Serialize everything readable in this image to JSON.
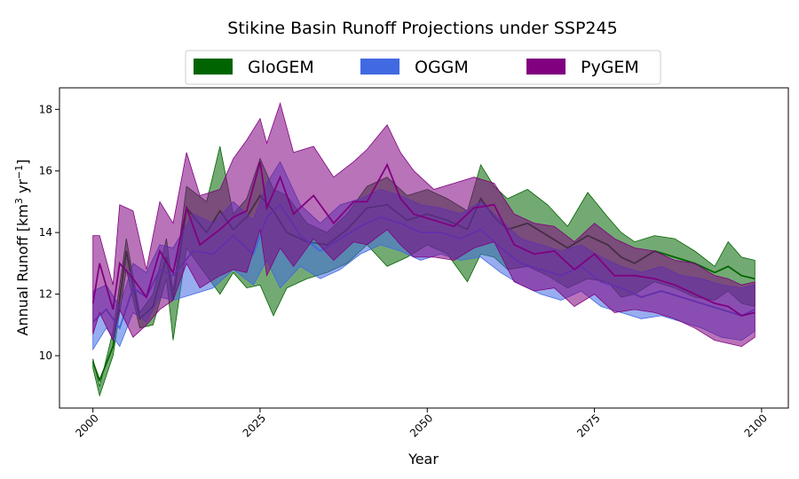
{
  "chart_data": {
    "type": "area",
    "title": "Stikine Basin Runoff Projections under SSP245",
    "xlabel": "Year",
    "ylabel": {
      "main": "Annual Runoff [km",
      "sup1": "3",
      "mid": " yr",
      "sup2": "−1",
      "end": "]"
    },
    "xlim": [
      1995,
      2104
    ],
    "ylim": [
      8.3,
      18.7
    ],
    "xticks": [
      2000,
      2025,
      2050,
      2075,
      2100
    ],
    "yticks": [
      10,
      12,
      14,
      16,
      18
    ],
    "legend_position": "top-center",
    "series": [
      {
        "name": "GloGEM",
        "color": "#006400",
        "x": [
          2000,
          2001,
          2003,
          2005,
          2007,
          2009,
          2011,
          2012,
          2014,
          2017,
          2019,
          2021,
          2023,
          2025,
          2027,
          2029,
          2032,
          2035,
          2038,
          2041,
          2044,
          2047,
          2050,
          2053,
          2056,
          2058,
          2060,
          2062,
          2065,
          2068,
          2071,
          2074,
          2077,
          2079,
          2081,
          2084,
          2087,
          2090,
          2093,
          2095,
          2097,
          2099
        ],
        "upper": [
          9.9,
          9.0,
          10.8,
          13.8,
          11.4,
          12.0,
          13.8,
          12.1,
          15.5,
          15.0,
          16.8,
          14.6,
          15.1,
          16.4,
          15.4,
          15.2,
          14.3,
          14.0,
          14.6,
          15.5,
          15.8,
          15.2,
          15.4,
          15.1,
          14.7,
          16.2,
          15.5,
          15.1,
          15.4,
          14.9,
          14.2,
          15.3,
          14.5,
          14.0,
          13.7,
          13.9,
          13.8,
          13.4,
          12.9,
          13.7,
          13.2,
          13.1
        ],
        "center": [
          9.8,
          9.2,
          10.3,
          13.4,
          11.2,
          11.6,
          13.2,
          11.8,
          14.8,
          14.0,
          14.7,
          14.1,
          14.5,
          15.2,
          14.7,
          14.0,
          13.7,
          13.6,
          14.1,
          14.8,
          14.9,
          14.4,
          14.6,
          14.4,
          14.1,
          15.1,
          14.5,
          14.1,
          14.3,
          13.9,
          13.5,
          13.9,
          13.6,
          13.2,
          13.0,
          13.4,
          13.2,
          13.0,
          12.7,
          12.9,
          12.6,
          12.5
        ],
        "lower": [
          9.6,
          8.7,
          10.0,
          12.8,
          10.9,
          11.0,
          12.5,
          10.5,
          13.5,
          12.6,
          12.0,
          12.7,
          12.2,
          12.3,
          11.3,
          12.2,
          12.5,
          12.7,
          13.0,
          13.6,
          12.9,
          13.2,
          13.6,
          13.3,
          12.4,
          13.3,
          13.2,
          12.8,
          12.9,
          12.6,
          12.2,
          12.5,
          12.4,
          11.9,
          12.0,
          12.4,
          12.2,
          11.9,
          11.8,
          12.1,
          11.7,
          11.6
        ]
      },
      {
        "name": "OGGM",
        "color": "#4169E1",
        "x": [
          2000,
          2002,
          2004,
          2006,
          2008,
          2010,
          2012,
          2015,
          2018,
          2021,
          2024,
          2026,
          2028,
          2031,
          2034,
          2037,
          2040,
          2043,
          2046,
          2049,
          2052,
          2055,
          2058,
          2061,
          2064,
          2067,
          2070,
          2073,
          2076,
          2079,
          2082,
          2085,
          2088,
          2091,
          2094,
          2097,
          2099
        ],
        "upper": [
          12.1,
          12.3,
          11.6,
          13.0,
          12.7,
          13.6,
          13.5,
          14.6,
          14.3,
          15.0,
          14.4,
          15.6,
          16.3,
          14.9,
          14.3,
          14.9,
          15.1,
          15.4,
          15.2,
          14.9,
          14.8,
          14.6,
          15.0,
          14.4,
          13.8,
          13.6,
          13.4,
          13.6,
          13.2,
          12.9,
          12.7,
          12.9,
          12.6,
          12.5,
          12.3,
          12.2,
          12.3
        ],
        "center": [
          11.1,
          11.5,
          10.9,
          12.2,
          11.9,
          12.8,
          12.6,
          13.4,
          13.3,
          13.9,
          13.3,
          14.5,
          14.9,
          13.9,
          13.4,
          13.8,
          14.2,
          14.5,
          14.3,
          14.0,
          14.0,
          13.8,
          14.1,
          13.5,
          13.0,
          12.8,
          12.6,
          12.9,
          12.4,
          12.2,
          11.9,
          12.1,
          11.9,
          11.7,
          11.5,
          11.3,
          11.5
        ],
        "lower": [
          10.2,
          10.9,
          10.3,
          11.4,
          11.1,
          11.9,
          11.8,
          12.0,
          12.2,
          12.8,
          12.3,
          13.1,
          12.2,
          12.9,
          12.5,
          12.8,
          13.3,
          13.6,
          13.4,
          13.1,
          13.3,
          13.1,
          13.2,
          12.7,
          12.3,
          12.0,
          11.8,
          12.1,
          11.6,
          11.4,
          11.2,
          11.3,
          11.1,
          10.9,
          10.6,
          10.5,
          10.8
        ]
      },
      {
        "name": "PyGEM",
        "color": "#800080",
        "x": [
          2000,
          2001,
          2003,
          2004,
          2006,
          2008,
          2010,
          2012,
          2014,
          2016,
          2019,
          2021,
          2023,
          2025,
          2026,
          2028,
          2030,
          2033,
          2036,
          2039,
          2041,
          2044,
          2046,
          2048,
          2051,
          2054,
          2057,
          2060,
          2063,
          2066,
          2069,
          2072,
          2075,
          2078,
          2081,
          2084,
          2087,
          2090,
          2093,
          2095,
          2097,
          2099
        ],
        "upper": [
          13.9,
          13.9,
          12.3,
          14.9,
          14.7,
          12.8,
          15.0,
          14.3,
          16.6,
          15.2,
          15.4,
          16.4,
          17.0,
          17.7,
          16.9,
          18.2,
          16.6,
          16.8,
          15.8,
          16.3,
          16.7,
          17.5,
          16.6,
          16.0,
          15.4,
          15.6,
          15.8,
          15.6,
          14.6,
          14.3,
          14.2,
          13.7,
          14.3,
          13.8,
          13.5,
          13.4,
          13.1,
          13.0,
          12.6,
          12.5,
          12.3,
          12.4
        ],
        "center": [
          11.7,
          13.0,
          11.5,
          13.0,
          12.5,
          11.9,
          13.4,
          12.7,
          14.8,
          13.6,
          14.1,
          14.5,
          14.7,
          16.3,
          14.8,
          15.8,
          14.6,
          15.2,
          14.3,
          15.0,
          15.0,
          16.2,
          15.1,
          14.6,
          14.4,
          14.2,
          14.8,
          14.9,
          13.6,
          13.3,
          13.4,
          12.8,
          13.3,
          12.6,
          12.6,
          12.5,
          12.3,
          12.0,
          11.7,
          11.6,
          11.3,
          11.4
        ],
        "lower": [
          10.7,
          11.4,
          10.5,
          11.5,
          10.6,
          11.0,
          11.5,
          11.8,
          13.0,
          12.2,
          12.6,
          12.8,
          12.7,
          14.1,
          12.6,
          13.5,
          12.9,
          13.8,
          13.1,
          13.7,
          13.6,
          14.1,
          13.6,
          13.2,
          13.2,
          13.1,
          13.5,
          13.7,
          12.4,
          12.1,
          12.2,
          11.6,
          12.0,
          11.4,
          11.5,
          11.4,
          11.2,
          10.9,
          10.5,
          10.4,
          10.3,
          10.6
        ]
      }
    ]
  }
}
